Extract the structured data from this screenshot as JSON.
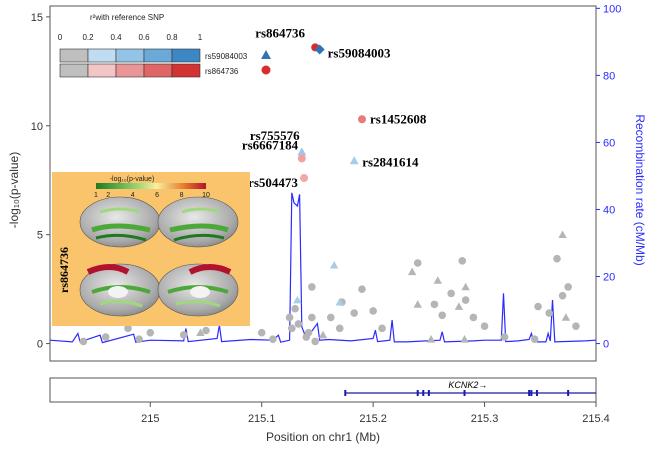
{
  "chart_data": {
    "type": "scatter",
    "xlabel": "Position on chr1 (Mb)",
    "ylabel_left": "-log₁₀(p-value)",
    "ylabel_right": "Recombination rate (cM/Mb)",
    "xlim": [
      214.91,
      215.4
    ],
    "ylim_left": [
      -0.8,
      15.5
    ],
    "ylim_right": [
      -5.2,
      100.7
    ],
    "x_ticks": [
      "215",
      "215.1",
      "215.2",
      "215.3",
      "215.4"
    ],
    "y_ticks_left": [
      "0",
      "5",
      "10",
      "15"
    ],
    "y_ticks_right": [
      "0",
      "20",
      "40",
      "60",
      "80",
      "100"
    ],
    "legend": {
      "title": "r²with reference SNP",
      "scale_ticks": [
        "0",
        "0.2",
        "0.4",
        "0.6",
        "0.8",
        "1"
      ],
      "rows": [
        {
          "name": "rs59084003",
          "marker": "triangle",
          "colors": [
            "#bfbfbf",
            "#c0dcf3",
            "#93c4e6",
            "#6aa9d8",
            "#3c87c4"
          ]
        },
        {
          "name": "rs864736",
          "marker": "circle",
          "colors": [
            "#bfbfbf",
            "#f3c6c6",
            "#eb9696",
            "#e06666",
            "#d43333"
          ]
        }
      ]
    },
    "highlight_points": [
      {
        "label": "rs864736",
        "x": 215.148,
        "y": 13.6,
        "marker": "circle",
        "color": "#d32f2f"
      },
      {
        "label": "rs59084003",
        "x": 215.152,
        "y": 13.5,
        "marker": "diamond",
        "color": "#3173b6"
      },
      {
        "label": "rs1452608",
        "x": 215.19,
        "y": 10.3,
        "marker": "circle",
        "color": "#e87a7a"
      },
      {
        "label": "rs755576",
        "x": 215.136,
        "y": 8.8,
        "marker": "triangle",
        "color": "#9cc7e8"
      },
      {
        "label": "rs6667184",
        "x": 215.136,
        "y": 8.5,
        "marker": "circle",
        "color": "#f2a0a0"
      },
      {
        "label": "rs2841614",
        "x": 215.183,
        "y": 8.4,
        "marker": "triangle",
        "color": "#a8cdea"
      },
      {
        "label": "rs504473",
        "x": 215.138,
        "y": 7.6,
        "marker": "circle",
        "color": "#f0a8a8"
      }
    ],
    "series": [
      {
        "marker": "circle",
        "points": [
          [
            214.94,
            0.1
          ],
          [
            214.96,
            0.3
          ],
          [
            214.98,
            0.7
          ],
          [
            214.99,
            0.2
          ],
          [
            215.0,
            0.5
          ],
          [
            215.03,
            0.4
          ],
          [
            215.05,
            0.6
          ],
          [
            215.1,
            0.5
          ],
          [
            215.11,
            0.2
          ],
          [
            215.125,
            1.2
          ],
          [
            215.127,
            0.7
          ],
          [
            215.13,
            1.6
          ],
          [
            215.133,
            0.9
          ],
          [
            215.14,
            0.3
          ],
          [
            215.142,
            0.5
          ],
          [
            215.145,
            1.2
          ],
          [
            215.145,
            2.6
          ],
          [
            215.148,
            0.1
          ],
          [
            215.162,
            1.2
          ],
          [
            215.17,
            0.7
          ],
          [
            215.172,
            1.9
          ],
          [
            215.183,
            1.4
          ],
          [
            215.19,
            2.5
          ],
          [
            215.2,
            1.5
          ],
          [
            215.208,
            0.7
          ],
          [
            215.24,
            3.7
          ],
          [
            215.255,
            1.8
          ],
          [
            215.262,
            1.3
          ],
          [
            215.27,
            2.3
          ],
          [
            215.28,
            3.8
          ],
          [
            215.283,
            2.0
          ],
          [
            215.29,
            1.2
          ],
          [
            215.3,
            0.8
          ],
          [
            215.318,
            0.3
          ],
          [
            215.345,
            0.2
          ],
          [
            215.348,
            1.7
          ],
          [
            215.358,
            1.4
          ],
          [
            215.365,
            3.9
          ],
          [
            215.37,
            2.2
          ],
          [
            215.375,
            2.6
          ],
          [
            215.382,
            0.8
          ]
        ]
      },
      {
        "marker": "triangle",
        "points": [
          [
            214.94,
            1.0
          ],
          [
            215.045,
            0.5
          ],
          [
            215.155,
            0.4
          ],
          [
            215.235,
            3.3
          ],
          [
            215.24,
            1.8
          ],
          [
            215.252,
            0.2
          ],
          [
            215.258,
            2.9
          ],
          [
            215.277,
            1.7
          ],
          [
            215.282,
            0.2
          ],
          [
            215.37,
            5.0
          ],
          [
            215.373,
            1.2
          ],
          [
            215.283,
            2.6
          ]
        ]
      },
      {
        "marker": "triangle-lightblue",
        "points": [
          [
            215.165,
            3.6
          ],
          [
            215.17,
            1.9
          ],
          [
            215.132,
            2.0
          ]
        ]
      }
    ],
    "recombination": {
      "line_color": "#2b2bff",
      "points": [
        [
          214.91,
          1.0
        ],
        [
          214.93,
          0.5
        ],
        [
          214.935,
          3.0
        ],
        [
          214.937,
          0.5
        ],
        [
          214.955,
          2.5
        ],
        [
          214.957,
          0.3
        ],
        [
          214.985,
          2.8
        ],
        [
          214.987,
          0.4
        ],
        [
          215.0,
          1.0
        ],
        [
          215.03,
          0.8
        ],
        [
          215.032,
          4.5
        ],
        [
          215.034,
          0.6
        ],
        [
          215.06,
          1.5
        ],
        [
          215.062,
          5.5
        ],
        [
          215.064,
          0.6
        ],
        [
          215.09,
          1.2
        ],
        [
          215.11,
          1.0
        ],
        [
          215.115,
          2.5
        ],
        [
          215.117,
          0.4
        ],
        [
          215.125,
          1.0
        ],
        [
          215.127,
          45.0
        ],
        [
          215.129,
          42.0
        ],
        [
          215.132,
          41.0
        ],
        [
          215.134,
          44.5
        ],
        [
          215.136,
          5.0
        ],
        [
          215.14,
          1.5
        ],
        [
          215.15,
          6.0
        ],
        [
          215.152,
          1.0
        ],
        [
          215.16,
          1.2
        ],
        [
          215.18,
          0.8
        ],
        [
          215.2,
          1.5
        ],
        [
          215.202,
          4.0
        ],
        [
          215.204,
          0.6
        ],
        [
          215.215,
          1.0
        ],
        [
          215.217,
          7.0
        ],
        [
          215.219,
          0.5
        ],
        [
          215.23,
          0.5
        ],
        [
          215.26,
          1.0
        ],
        [
          215.262,
          3.5
        ],
        [
          215.264,
          0.5
        ],
        [
          215.29,
          0.8
        ],
        [
          215.3,
          1.0
        ],
        [
          215.315,
          1.0
        ],
        [
          215.317,
          15.0
        ],
        [
          215.319,
          0.6
        ],
        [
          215.33,
          0.8
        ],
        [
          215.34,
          1.2
        ],
        [
          215.342,
          3.0
        ],
        [
          215.344,
          0.5
        ],
        [
          215.355,
          0.5
        ],
        [
          215.357,
          3.0
        ],
        [
          215.359,
          0.8
        ],
        [
          215.361,
          13.0
        ],
        [
          215.363,
          0.5
        ],
        [
          215.39,
          0.8
        ],
        [
          215.4,
          1.0
        ]
      ]
    },
    "gene_track": {
      "gene_label": "KCNK2→",
      "start": 215.175,
      "end": 215.4,
      "exons": [
        215.175,
        215.24,
        215.245,
        215.25,
        215.282,
        215.34,
        215.342,
        215.347,
        215.375
      ]
    },
    "inset": {
      "scale_title": "-log₁₀(p-value)",
      "scale_ticks": [
        "1",
        "2",
        "4",
        "6",
        "8",
        "10"
      ],
      "side_label": "rs864736",
      "background": "#f9c46b"
    }
  }
}
